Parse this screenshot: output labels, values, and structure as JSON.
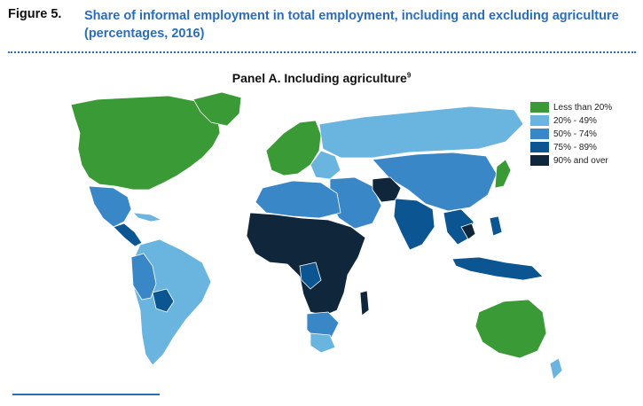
{
  "figure": {
    "label": "Figure 5.",
    "title_line1": "Share of informal employment in total employment, including and excluding agriculture",
    "title_line2": "(percentages, 2016)"
  },
  "panel": {
    "title": "Panel A.  Including agriculture",
    "footnote_ref": "9"
  },
  "legend": [
    {
      "label": "Less than 20%",
      "color": "#3a9a35"
    },
    {
      "label": "20% - 49%",
      "color": "#6ab4e0"
    },
    {
      "label": "50% - 74%",
      "color": "#3a87c8"
    },
    {
      "label": "75% - 89%",
      "color": "#0a5592"
    },
    {
      "label": "90% and over",
      "color": "#10263a"
    }
  ]
}
